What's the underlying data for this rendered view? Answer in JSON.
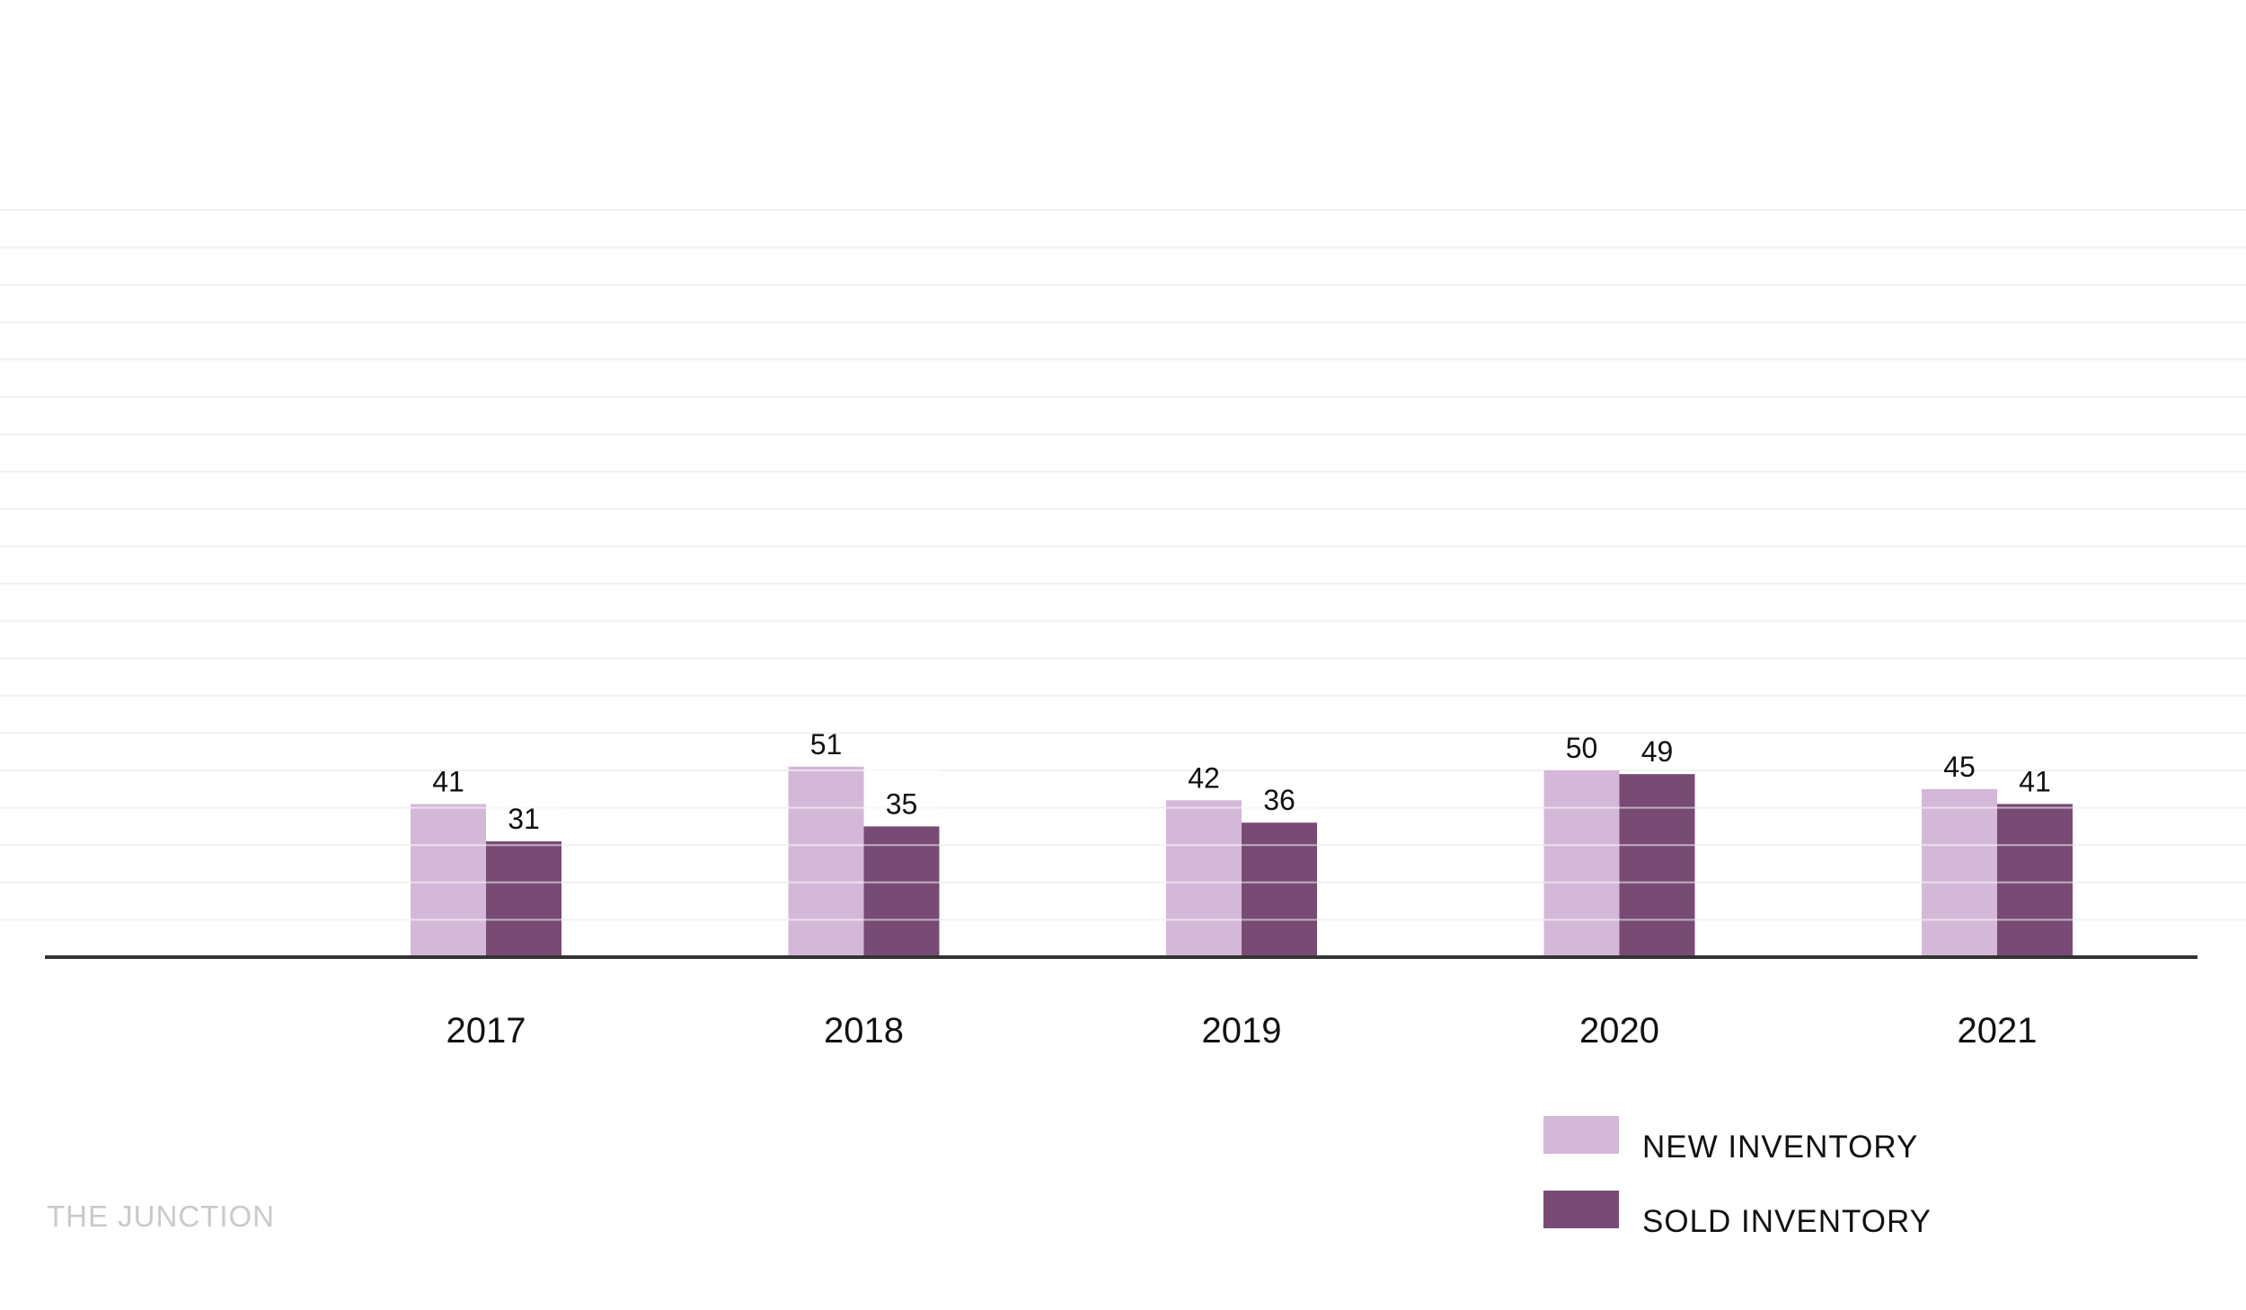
{
  "brand": "THE JUNCTION",
  "chart_data": {
    "type": "bar",
    "title": "",
    "xlabel": "",
    "ylabel": "",
    "categories": [
      "2017",
      "2018",
      "2019",
      "2020",
      "2021"
    ],
    "series": [
      {
        "name": "NEW INVENTORY",
        "values": [
          41,
          51,
          42,
          50,
          45
        ],
        "color": "#d4b8d8"
      },
      {
        "name": "SOLD INVENTORY",
        "values": [
          31,
          35,
          36,
          49,
          41
        ],
        "color": "#774b74"
      }
    ],
    "ylim": [
      0,
      200
    ],
    "grid": true,
    "gridline_step": 10,
    "data_labels": true,
    "legend_position": "bottom-right"
  }
}
